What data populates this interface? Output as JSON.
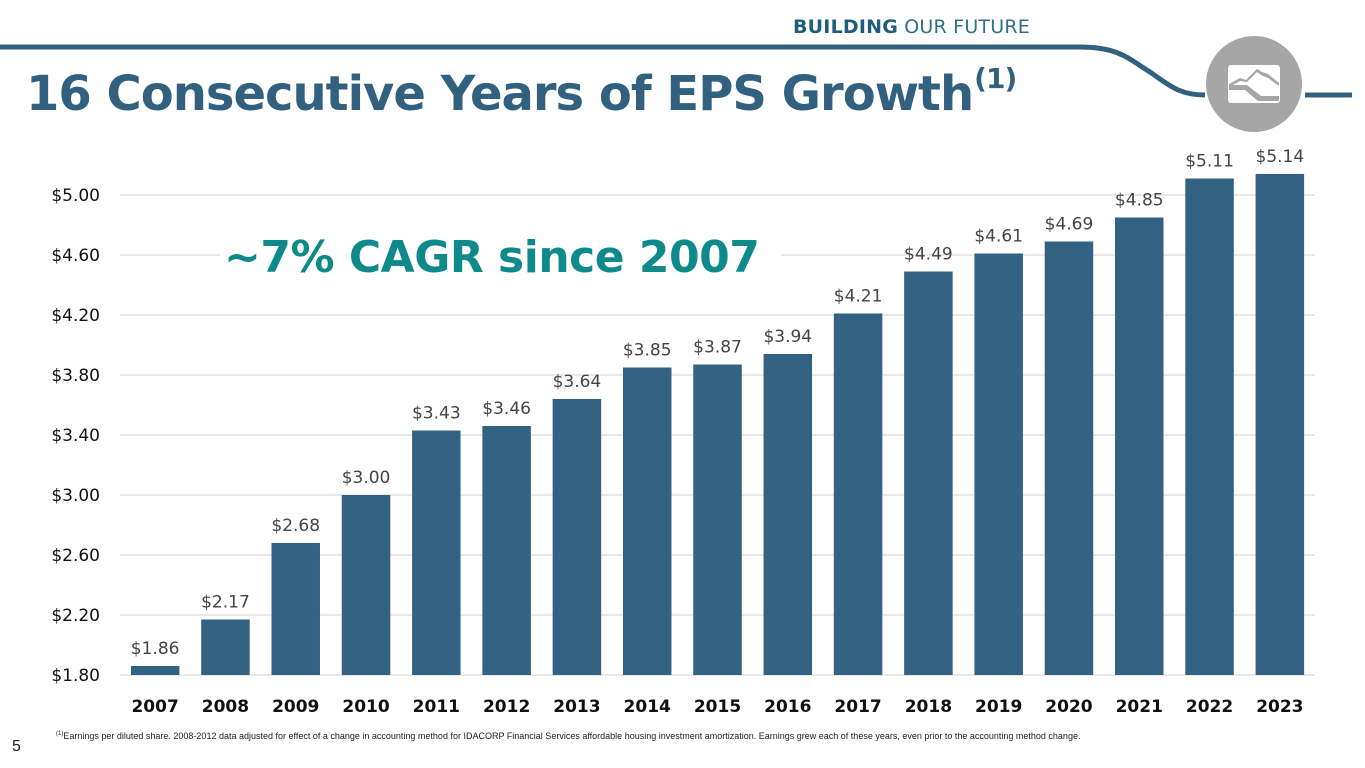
{
  "header": {
    "tagline_bold": "BUILDING",
    "tagline_light": "OUR FUTURE",
    "title": "16 Consecutive Years of EPS Growth",
    "title_footnote_marker": "(1)",
    "logo": "mountain-river-logo-icon"
  },
  "annotation": {
    "cagr_text": "~7% CAGR since 2007"
  },
  "colors": {
    "bar": "#336283",
    "title": "#32607f",
    "accent_teal": "#0f8a8a",
    "gridline": "#d9d9d9",
    "logo_circle": "#a6a6a6"
  },
  "chart_data": {
    "type": "bar",
    "title": "16 Consecutive Years of EPS Growth",
    "xlabel": "",
    "ylabel": "",
    "categories": [
      "2007",
      "2008",
      "2009",
      "2010",
      "2011",
      "2012",
      "2013",
      "2014",
      "2015",
      "2016",
      "2017",
      "2018",
      "2019",
      "2020",
      "2021",
      "2022",
      "2023"
    ],
    "values": [
      1.86,
      2.17,
      2.68,
      3.0,
      3.43,
      3.46,
      3.64,
      3.85,
      3.87,
      3.94,
      4.21,
      4.49,
      4.61,
      4.69,
      4.85,
      5.11,
      5.14
    ],
    "data_labels": [
      "$1.86",
      "$2.17",
      "$2.68",
      "$3.00",
      "$3.43",
      "$3.46",
      "$3.64",
      "$3.85",
      "$3.87",
      "$3.94",
      "$4.21",
      "$4.49",
      "$4.61",
      "$4.69",
      "$4.85",
      "$5.11",
      "$5.14"
    ],
    "ylim": [
      1.8,
      5.0
    ],
    "y_ticks": [
      1.8,
      2.2,
      2.6,
      3.0,
      3.4,
      3.8,
      4.2,
      4.6,
      5.0
    ],
    "y_tick_labels": [
      "$1.80",
      "$2.20",
      "$2.60",
      "$3.00",
      "$3.40",
      "$3.80",
      "$4.20",
      "$4.60",
      "$5.00"
    ],
    "grid": true,
    "legend": "none"
  },
  "footer": {
    "footnote_marker": "(1)",
    "footnote": "Earnings per diluted share. 2008-2012 data adjusted for effect of a change in accounting method for IDACORP Financial Services affordable housing investment amortization. Earnings grew each of these years, even prior to the accounting method change.",
    "page_number": "5"
  }
}
